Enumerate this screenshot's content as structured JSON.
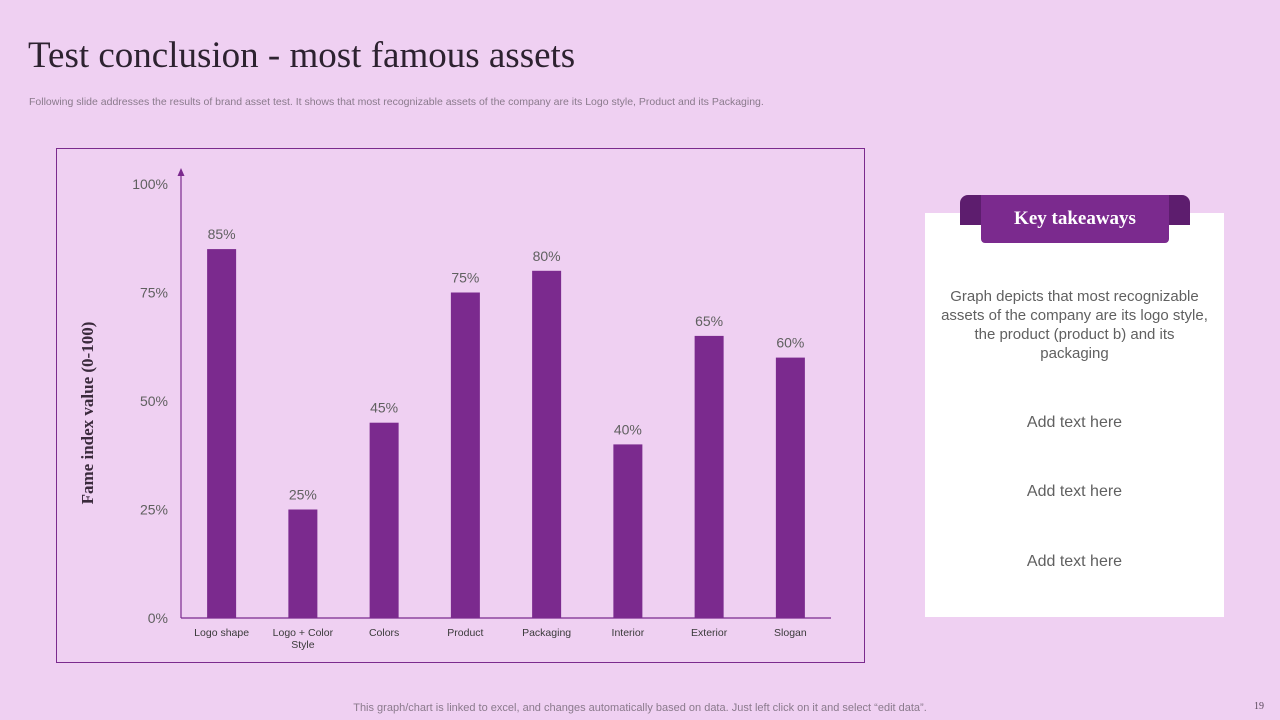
{
  "slide": {
    "title": "Test conclusion - most famous assets",
    "subtitle": "Following slide addresses the results of brand asset test. It shows that most recognizable assets of the company are its Logo style, Product and its Packaging.",
    "footer_note": "This graph/chart is linked to excel, and changes automatically based on data. Just left click on it and select “edit data”.",
    "page_number": "19"
  },
  "takeaways": {
    "heading": "Key takeaways",
    "main_text": "Graph depicts that most recognizable assets of the company are its logo style, the product (product b) and its packaging",
    "items": [
      "Add text here",
      "Add text here",
      "Add text here"
    ]
  },
  "colors": {
    "background": "#efd0f2",
    "bar": "#7b2a8e",
    "accent_dark": "#5d1d6e",
    "card": "#ffffff"
  },
  "chart_data": {
    "type": "bar",
    "categories": [
      "Logo shape",
      "Logo + Color Style",
      "Colors",
      "Product",
      "Packaging",
      "Interior",
      "Exterior",
      "Slogan"
    ],
    "values": [
      85,
      25,
      45,
      75,
      80,
      40,
      65,
      60
    ],
    "data_labels": [
      "85%",
      "25%",
      "45%",
      "75%",
      "80%",
      "40%",
      "65%",
      "60%"
    ],
    "ylabel": "Fame index value (0-100)",
    "xlabel": "",
    "ylim": [
      0,
      100
    ],
    "yticks": [
      0,
      25,
      50,
      75,
      100
    ],
    "ytick_labels": [
      "0%",
      "25%",
      "50%",
      "75%",
      "100%"
    ],
    "grid": false,
    "legend": "none"
  }
}
